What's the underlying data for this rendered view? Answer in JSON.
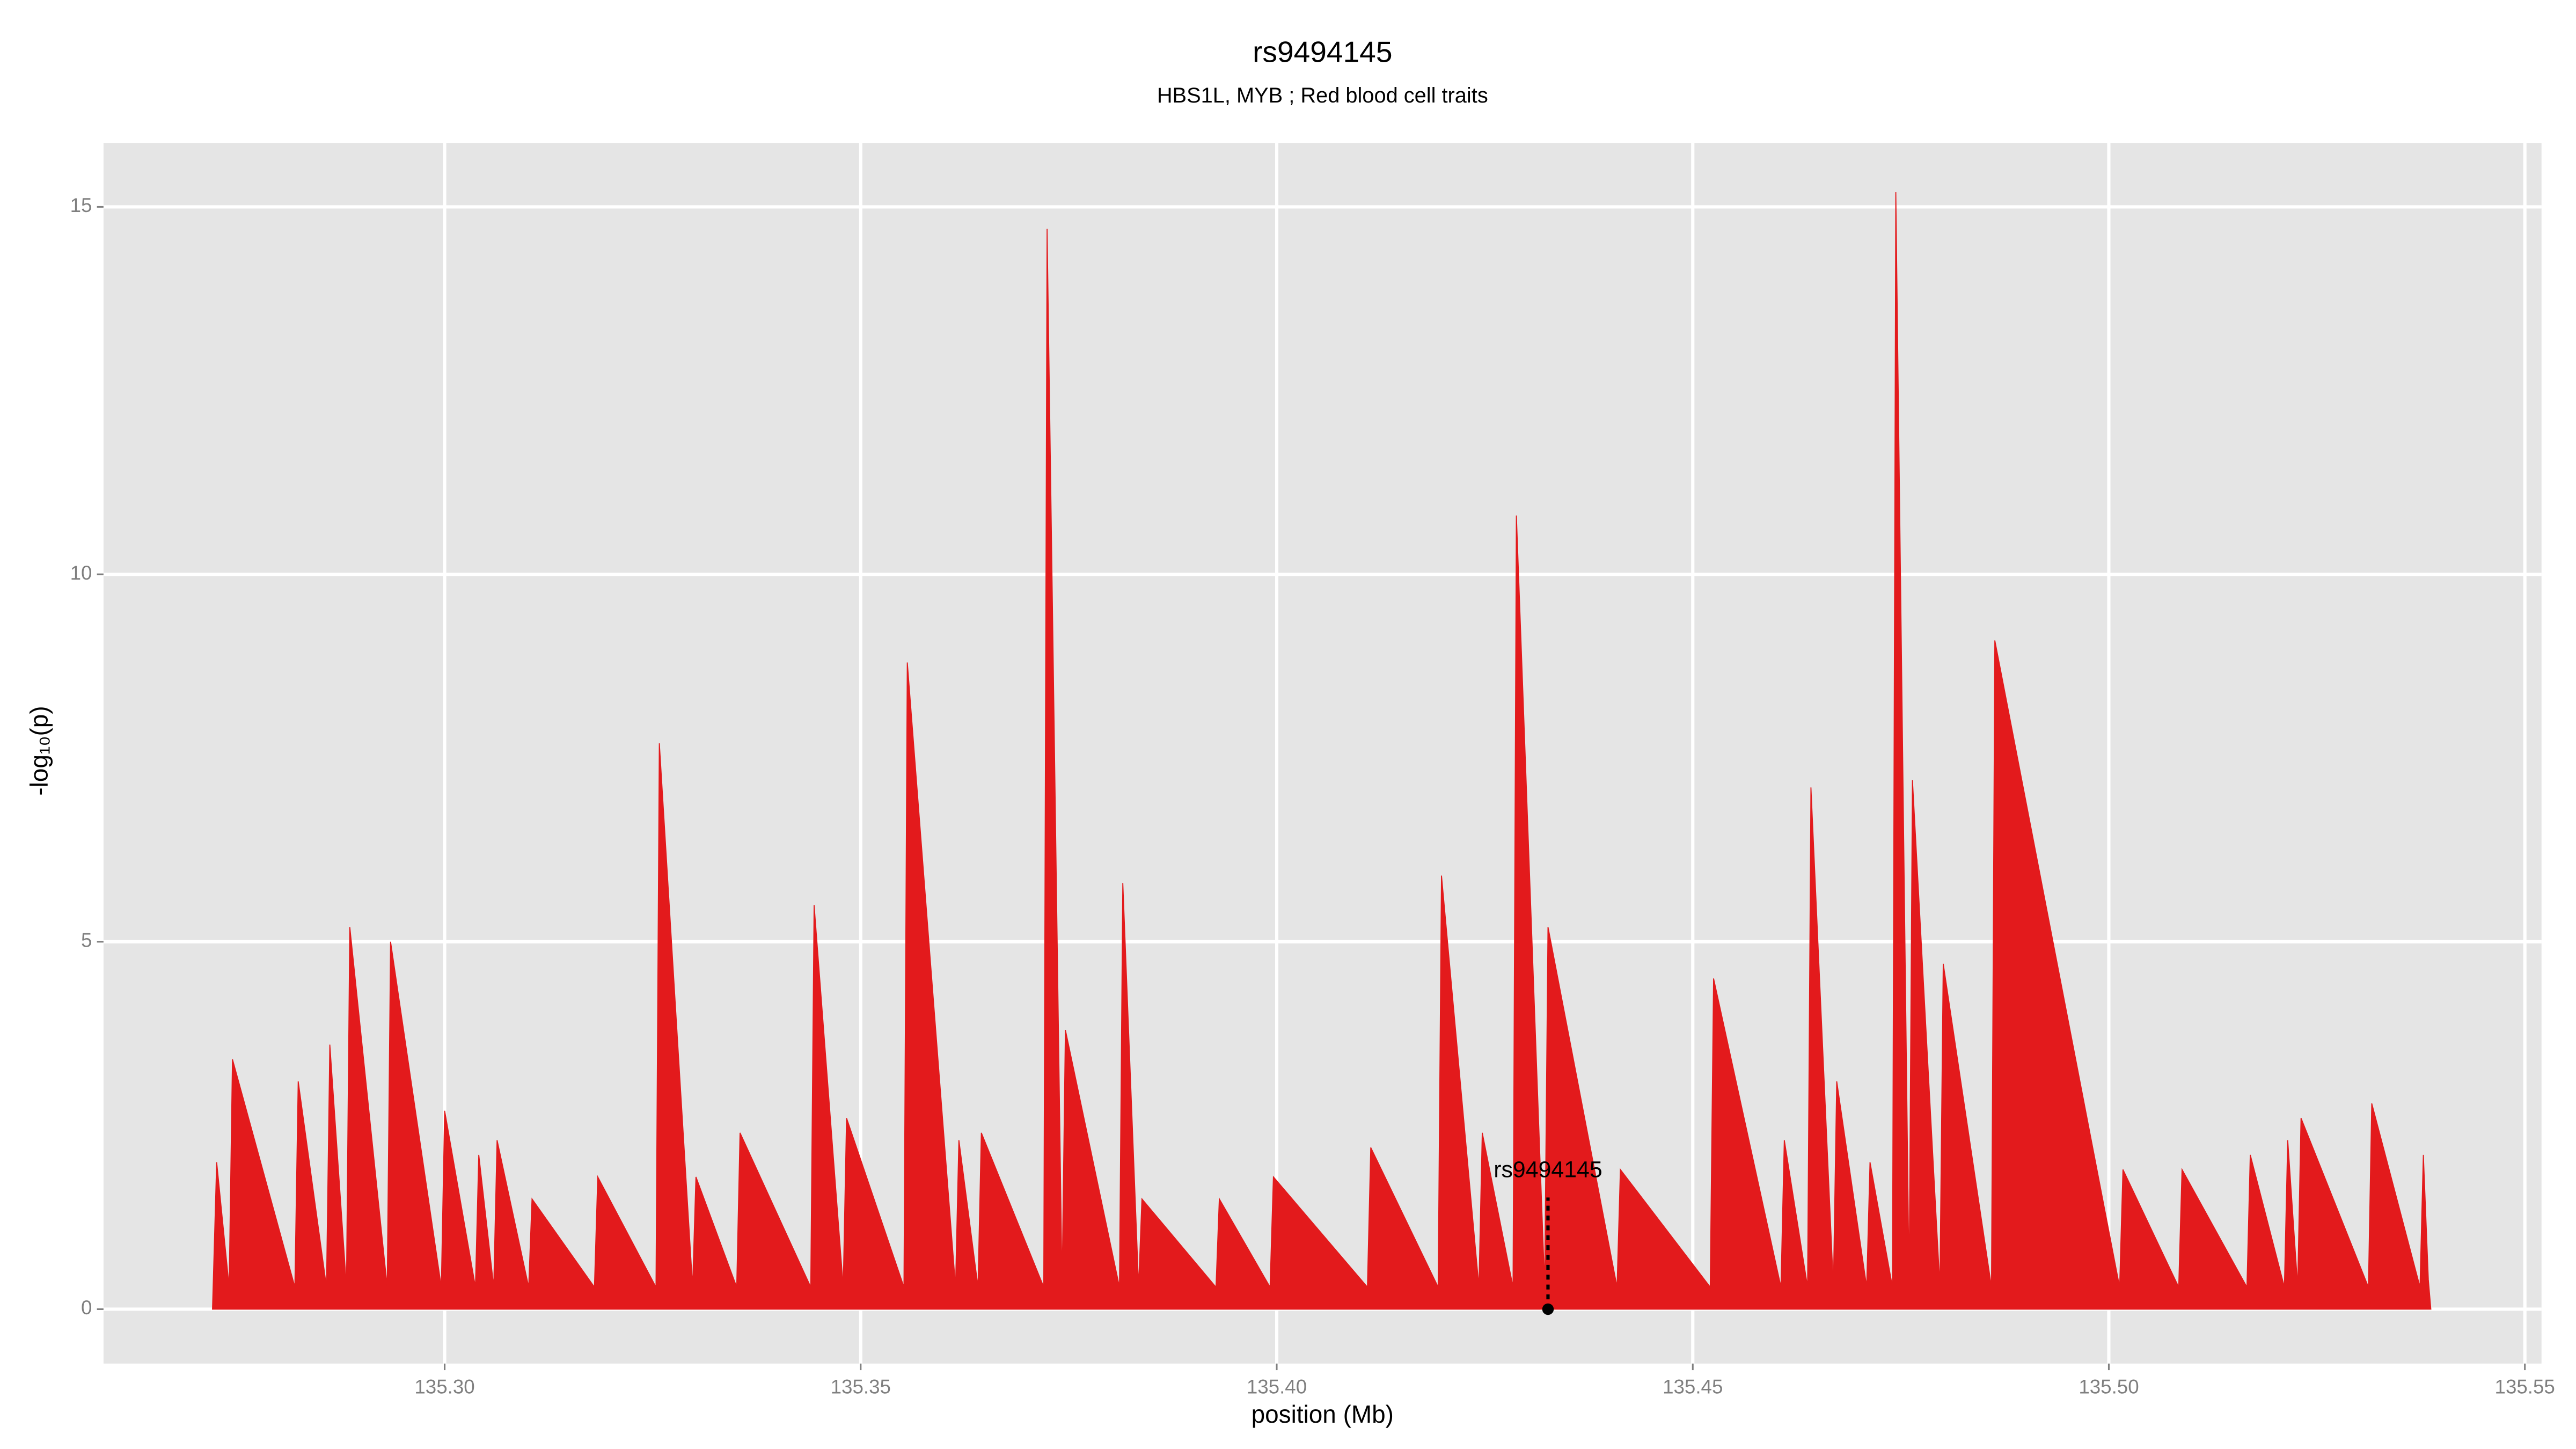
{
  "chart_data": {
    "type": "area",
    "title": "rs9494145",
    "subtitle": "HBS1L, MYB ; Red blood cell traits",
    "x_label": "position (Mb)",
    "y_label": "-log₁₀(p)",
    "xlim": [
      135.259,
      135.552
    ],
    "ylim": [
      -0.74,
      15.87
    ],
    "xticks": [
      {
        "value": 135.3,
        "label": "135.30"
      },
      {
        "value": 135.35,
        "label": "135.35"
      },
      {
        "value": 135.4,
        "label": "135.40"
      },
      {
        "value": 135.45,
        "label": "135.45"
      },
      {
        "value": 135.5,
        "label": "135.50"
      },
      {
        "value": 135.55,
        "label": "135.55"
      }
    ],
    "yticks": [
      0,
      5,
      10,
      15
    ],
    "grid": true,
    "x": [
      135.2721,
      135.2726,
      135.2741,
      135.2745,
      135.282,
      135.2824,
      135.2858,
      135.2862,
      135.2882,
      135.2886,
      135.2931,
      135.2935,
      135.2996,
      135.3,
      135.3037,
      135.3041,
      135.3059,
      135.3063,
      135.3101,
      135.3105,
      135.318,
      135.3184,
      135.3254,
      135.3258,
      135.3298,
      135.3302,
      135.3351,
      135.3355,
      135.344,
      135.3444,
      135.3479,
      135.3483,
      135.3552,
      135.3556,
      135.3614,
      135.3618,
      135.3641,
      135.3645,
      135.372,
      135.3724,
      135.3742,
      135.3746,
      135.3811,
      135.3815,
      135.3834,
      135.3838,
      135.3927,
      135.3931,
      135.3992,
      135.3996,
      135.4109,
      135.4113,
      135.4194,
      135.4198,
      135.4243,
      135.4247,
      135.4284,
      135.4288,
      135.4322,
      135.4326,
      135.4409,
      135.4413,
      135.4521,
      135.4525,
      135.4606,
      135.461,
      135.4638,
      135.4642,
      135.4669,
      135.4673,
      135.4709,
      135.4713,
      135.474,
      135.4744,
      135.476,
      135.4764,
      135.4797,
      135.4801,
      135.4859,
      135.4863,
      135.5013,
      135.5017,
      135.5084,
      135.5088,
      135.5166,
      135.517,
      135.5211,
      135.5215,
      135.5227,
      135.5231,
      135.5312,
      135.5316,
      135.5374,
      135.5378,
      135.5384,
      135.5387
    ],
    "series": [
      {
        "color": "#e31a1c",
        "values": [
          0,
          2.0,
          0.3,
          3.4,
          0.3,
          3.1,
          0.3,
          3.6,
          0.3,
          5.2,
          0.3,
          5.0,
          0.3,
          2.7,
          0.3,
          2.1,
          0.3,
          2.3,
          0.3,
          1.5,
          0.3,
          1.8,
          0.3,
          7.7,
          0.3,
          1.8,
          0.3,
          2.4,
          0.3,
          5.5,
          0.3,
          2.6,
          0.3,
          8.8,
          0.3,
          2.3,
          0.3,
          2.4,
          0.3,
          14.7,
          0.3,
          3.8,
          0.3,
          5.8,
          0.3,
          1.5,
          0.3,
          1.5,
          0.3,
          1.8,
          0.3,
          2.2,
          0.3,
          5.9,
          0.3,
          2.4,
          0.3,
          10.8,
          0.3,
          5.2,
          0.3,
          1.9,
          0.3,
          4.5,
          0.3,
          2.3,
          0.3,
          7.1,
          0.3,
          3.1,
          0.3,
          2.0,
          0.3,
          15.2,
          0.3,
          7.2,
          0.3,
          4.7,
          0.3,
          9.1,
          0.3,
          1.9,
          0.3,
          1.9,
          0.3,
          2.1,
          0.3,
          2.3,
          0.3,
          2.6,
          0.3,
          2.8,
          0.3,
          2.1,
          0.4,
          0
        ]
      }
    ],
    "annotation": {
      "label": "rs9494145",
      "x": 135.4326,
      "y": 0
    }
  }
}
